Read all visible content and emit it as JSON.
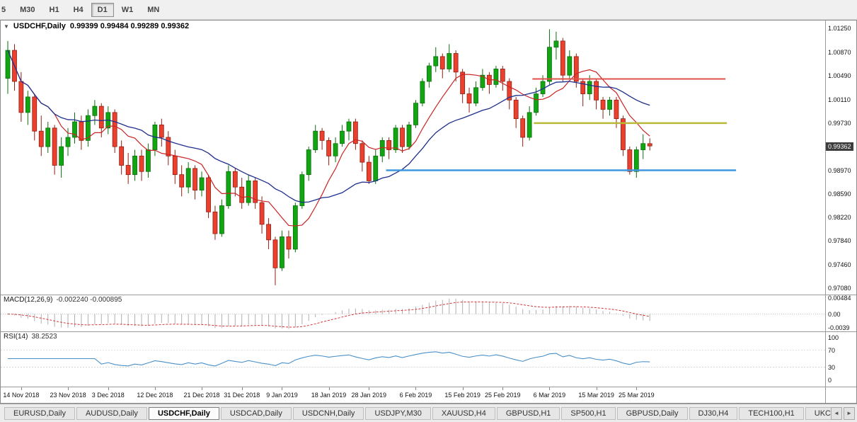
{
  "toolbar": {
    "timeframes": [
      {
        "label": "5",
        "active": false
      },
      {
        "label": "M30",
        "active": false
      },
      {
        "label": "H1",
        "active": false
      },
      {
        "label": "H4",
        "active": false
      },
      {
        "label": "D1",
        "active": true
      },
      {
        "label": "W1",
        "active": false
      },
      {
        "label": "MN",
        "active": false
      }
    ]
  },
  "chart": {
    "symbol_label": "USDCHF,Daily",
    "ohlc_text": "0.99399 0.99484 0.99289 0.99362",
    "price_tag": "0.99362",
    "dropdown_icon": "▼"
  },
  "chart_data": {
    "type": "candlestick",
    "symbol": "USDCHF",
    "timeframe": "Daily",
    "current_bar": {
      "open": 0.99399,
      "high": 0.99484,
      "low": 0.99289,
      "close": 0.99362
    },
    "colors": {
      "bull": "#12a512",
      "bull_wick": "#0c6e0c",
      "bear": "#ec402f",
      "bear_wick": "#8f1e12",
      "ma_fast": "#cb2424",
      "ma_slow": "#1e2f8d",
      "macd_hist": "#b0b0b0",
      "macd_signal": "#cf3333",
      "rsi_line": "#4a90c8",
      "price_tag_bg": "#3d3d3d"
    },
    "price_axis": {
      "top": 1.0138,
      "bottom": 0.9697,
      "labels": [
        "1.01250",
        "1.00870",
        "1.00490",
        "1.00110",
        "0.99730",
        "0.98970",
        "0.98590",
        "0.98220",
        "0.97840",
        "0.97460",
        "0.97080"
      ]
    },
    "time_axis": [
      {
        "label": "14 Nov 2018",
        "index": 2
      },
      {
        "label": "23 Nov 2018",
        "index": 9
      },
      {
        "label": "3 Dec 2018",
        "index": 15
      },
      {
        "label": "12 Dec 2018",
        "index": 22
      },
      {
        "label": "21 Dec 2018",
        "index": 29
      },
      {
        "label": "31 Dec 2018",
        "index": 35
      },
      {
        "label": "9 Jan 2019",
        "index": 41
      },
      {
        "label": "18 Jan 2019",
        "index": 48
      },
      {
        "label": "28 Jan 2019",
        "index": 54
      },
      {
        "label": "6 Feb 2019",
        "index": 61
      },
      {
        "label": "15 Feb 2019",
        "index": 68
      },
      {
        "label": "25 Feb 2019",
        "index": 74
      },
      {
        "label": "6 Mar 2019",
        "index": 81
      },
      {
        "label": "15 Mar 2019",
        "index": 88
      },
      {
        "label": "25 Mar 2019",
        "index": 94
      }
    ],
    "overlays": {
      "ma_fast": {
        "period": 8
      },
      "ma_slow": {
        "period": 21
      }
    },
    "lines": [
      {
        "name": "resistance-line",
        "color": "#e0504a",
        "price": 1.0044,
        "x1": 0.645,
        "x2": 0.879,
        "width": 2
      },
      {
        "name": "pivot-line",
        "color": "#b9ba3a",
        "price": 0.9973,
        "x1": 0.647,
        "x2": 0.881,
        "width": 2.5
      },
      {
        "name": "support-line",
        "color": "#3f97de",
        "price": 0.9897,
        "x1": 0.467,
        "x2": 0.892,
        "width": 2.5
      }
    ],
    "indicators": {
      "macd": {
        "label": "MACD(12,26,9)",
        "values_text": "-0.002240 -0.000895",
        "fast": 12,
        "slow": 26,
        "signal": 9,
        "axis": [
          {
            "text": "0.00484",
            "value": 0.00484
          },
          {
            "text": "0.00",
            "value": 0
          },
          {
            "text": "-0.0039",
            "value": -0.0039
          }
        ]
      },
      "rsi": {
        "label": "RSI(14)",
        "value_text": "38.2523",
        "period": 14,
        "levels": [
          70,
          30
        ],
        "axis": [
          {
            "text": "100",
            "value": 100
          },
          {
            "text": "70",
            "value": 70
          },
          {
            "text": "30",
            "value": 30
          },
          {
            "text": "0",
            "value": 0
          }
        ]
      }
    },
    "candles": [
      [
        1.0045,
        1.0105,
        1.002,
        1.009
      ],
      [
        1.009,
        1.01,
        1.0025,
        1.004
      ],
      [
        1.004,
        1.0055,
        0.9975,
        0.999
      ],
      [
        0.999,
        1.0025,
        0.997,
        1.0015
      ],
      [
        1.0015,
        1.002,
        0.9945,
        0.996
      ],
      [
        0.996,
        0.9985,
        0.992,
        0.9935
      ],
      [
        0.9935,
        0.9975,
        0.9925,
        0.9965
      ],
      [
        0.9965,
        0.997,
        0.989,
        0.9905
      ],
      [
        0.9905,
        0.995,
        0.9885,
        0.9935
      ],
      [
        0.9935,
        0.9965,
        0.992,
        0.995
      ],
      [
        0.995,
        0.999,
        0.994,
        0.9975
      ],
      [
        0.9975,
        0.9985,
        0.993,
        0.9945
      ],
      [
        0.9945,
        0.9995,
        0.9935,
        0.9985
      ],
      [
        0.9985,
        1.001,
        0.997,
        1.0
      ],
      [
        1.0,
        1.0005,
        0.995,
        0.9965
      ],
      [
        0.9965,
        1.0,
        0.9955,
        0.999
      ],
      [
        0.999,
        0.9995,
        0.9925,
        0.9935
      ],
      [
        0.9935,
        0.9945,
        0.989,
        0.9905
      ],
      [
        0.9905,
        0.9925,
        0.9875,
        0.989
      ],
      [
        0.989,
        0.993,
        0.988,
        0.992
      ],
      [
        0.992,
        0.993,
        0.988,
        0.9895
      ],
      [
        0.9895,
        0.994,
        0.9885,
        0.993
      ],
      [
        0.993,
        0.9975,
        0.992,
        0.997
      ],
      [
        0.997,
        0.998,
        0.9935,
        0.995
      ],
      [
        0.995,
        0.996,
        0.9905,
        0.992
      ],
      [
        0.992,
        0.993,
        0.9875,
        0.989
      ],
      [
        0.989,
        0.9905,
        0.9855,
        0.987
      ],
      [
        0.987,
        0.991,
        0.986,
        0.99
      ],
      [
        0.99,
        0.9905,
        0.985,
        0.9865
      ],
      [
        0.9865,
        0.9895,
        0.9855,
        0.9885
      ],
      [
        0.9885,
        0.989,
        0.982,
        0.983
      ],
      [
        0.983,
        0.984,
        0.9785,
        0.9795
      ],
      [
        0.9795,
        0.985,
        0.979,
        0.984
      ],
      [
        0.984,
        0.9905,
        0.9835,
        0.9895
      ],
      [
        0.9895,
        0.99,
        0.9855,
        0.987
      ],
      [
        0.987,
        0.9885,
        0.9835,
        0.9845
      ],
      [
        0.9845,
        0.989,
        0.984,
        0.988
      ],
      [
        0.988,
        0.9885,
        0.9835,
        0.9845
      ],
      [
        0.9845,
        0.9855,
        0.9795,
        0.981
      ],
      [
        0.981,
        0.982,
        0.977,
        0.9785
      ],
      [
        0.9785,
        0.979,
        0.9712,
        0.974
      ],
      [
        0.974,
        0.98,
        0.9735,
        0.979
      ],
      [
        0.979,
        0.98,
        0.9755,
        0.977
      ],
      [
        0.977,
        0.9845,
        0.9765,
        0.984
      ],
      [
        0.984,
        0.9895,
        0.9835,
        0.989
      ],
      [
        0.989,
        0.9935,
        0.988,
        0.993
      ],
      [
        0.993,
        0.997,
        0.9925,
        0.996
      ],
      [
        0.996,
        0.9965,
        0.993,
        0.9945
      ],
      [
        0.9945,
        0.995,
        0.9905,
        0.992
      ],
      [
        0.992,
        0.995,
        0.991,
        0.994
      ],
      [
        0.994,
        0.997,
        0.9935,
        0.996
      ],
      [
        0.996,
        0.998,
        0.9945,
        0.9975
      ],
      [
        0.9975,
        0.998,
        0.993,
        0.994
      ],
      [
        0.994,
        0.9945,
        0.9895,
        0.991
      ],
      [
        0.991,
        0.992,
        0.9875,
        0.988
      ],
      [
        0.988,
        0.993,
        0.9875,
        0.992
      ],
      [
        0.992,
        0.995,
        0.991,
        0.9945
      ],
      [
        0.9945,
        0.995,
        0.9915,
        0.993
      ],
      [
        0.993,
        0.997,
        0.9925,
        0.9965
      ],
      [
        0.9965,
        0.997,
        0.9925,
        0.9935
      ],
      [
        0.9935,
        0.9975,
        0.993,
        0.997
      ],
      [
        0.997,
        1.001,
        0.9965,
        1.0005
      ],
      [
        1.0005,
        1.0045,
        1.0,
        1.004
      ],
      [
        1.004,
        1.007,
        1.003,
        1.0065
      ],
      [
        1.0065,
        1.0095,
        1.0055,
        1.008
      ],
      [
        1.008,
        1.0085,
        1.0045,
        1.006
      ],
      [
        1.006,
        1.01,
        1.0055,
        1.0085
      ],
      [
        1.0085,
        1.009,
        1.004,
        1.0055
      ],
      [
        1.0055,
        1.006,
        1.0005,
        1.002
      ],
      [
        1.002,
        1.003,
        0.999,
        1.0005
      ],
      [
        1.0005,
        1.004,
        1.0,
        1.003
      ],
      [
        1.003,
        1.006,
        1.0025,
        1.005
      ],
      [
        1.005,
        1.0055,
        1.002,
        1.0035
      ],
      [
        1.0035,
        1.0065,
        1.003,
        1.006
      ],
      [
        1.006,
        1.0065,
        1.0025,
        1.004
      ],
      [
        1.004,
        1.0045,
        0.9995,
        1.001
      ],
      [
        1.001,
        1.0015,
        0.9965,
        0.998
      ],
      [
        0.998,
        0.9985,
        0.9935,
        0.995
      ],
      [
        0.995,
        1.0,
        0.9945,
        0.999
      ],
      [
        0.999,
        1.003,
        0.9985,
        1.002
      ],
      [
        1.002,
        1.005,
        1.0015,
        1.004
      ],
      [
        1.004,
        1.0124,
        1.0035,
        1.0095
      ],
      [
        1.0095,
        1.012,
        1.0075,
        1.0105
      ],
      [
        1.0105,
        1.011,
        1.004,
        1.005
      ],
      [
        1.005,
        1.009,
        1.0045,
        1.008
      ],
      [
        1.008,
        1.0085,
        1.003,
        1.004
      ],
      [
        1.004,
        1.0045,
        1.0,
        1.002
      ],
      [
        1.002,
        1.005,
        1.001,
        1.004
      ],
      [
        1.004,
        1.0045,
        0.9995,
        1.001
      ],
      [
        1.001,
        1.0015,
        0.998,
        0.9995
      ],
      [
        0.9995,
        1.0015,
        0.9985,
        1.001
      ],
      [
        1.001,
        1.0015,
        0.9965,
        0.998
      ],
      [
        0.998,
        0.9985,
        0.992,
        0.993
      ],
      [
        0.993,
        0.9935,
        0.989,
        0.9895
      ],
      [
        0.9895,
        0.9935,
        0.9885,
        0.993
      ],
      [
        0.993,
        0.9955,
        0.9915,
        0.994
      ],
      [
        0.99399,
        0.99484,
        0.99289,
        0.99362
      ]
    ]
  },
  "tabs": {
    "scroll_left": "◄",
    "scroll_right": "►",
    "items": [
      {
        "label": "EURUSD,Daily",
        "active": false
      },
      {
        "label": "AUDUSD,Daily",
        "active": false
      },
      {
        "label": "USDCHF,Daily",
        "active": true
      },
      {
        "label": "USDCAD,Daily",
        "active": false
      },
      {
        "label": "USDCNH,Daily",
        "active": false
      },
      {
        "label": "USDJPY,M30",
        "active": false
      },
      {
        "label": "XAUUSD,H4",
        "active": false
      },
      {
        "label": "GBPUSD,H1",
        "active": false
      },
      {
        "label": "SP500,H1",
        "active": false
      },
      {
        "label": "GBPUSD,Daily",
        "active": false
      },
      {
        "label": "DJ30,H4",
        "active": false
      },
      {
        "label": "TECH100,H1",
        "active": false
      },
      {
        "label": "UKC",
        "active": false
      }
    ]
  }
}
